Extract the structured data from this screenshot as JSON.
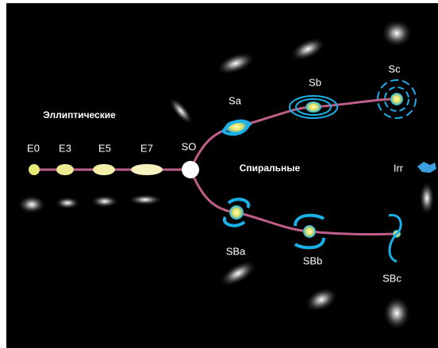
{
  "labels": {
    "elliptical": "Эллиптические",
    "spiral": "Спиральные"
  },
  "nodes": [
    {
      "label": "E0"
    },
    {
      "label": "E3"
    },
    {
      "label": "E5"
    },
    {
      "label": "E7"
    },
    {
      "label": "SO"
    },
    {
      "label": "Sa"
    },
    {
      "label": "Sb"
    },
    {
      "label": "Sc"
    },
    {
      "label": "SBa"
    },
    {
      "label": "SBb"
    },
    {
      "label": "SBc"
    },
    {
      "label": "Irr"
    }
  ]
}
